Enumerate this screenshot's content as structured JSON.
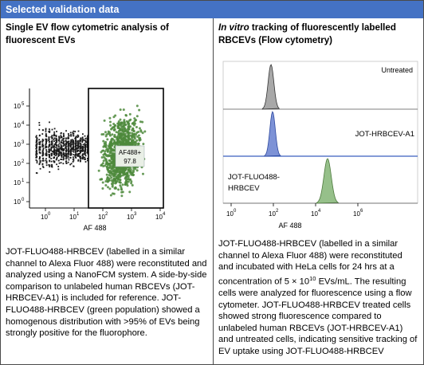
{
  "header": {
    "title": "Selected validation data"
  },
  "left_panel": {
    "title": "Single EV flow cytometric analysis of fluorescent EVs",
    "gate_label": "AF488+",
    "gate_value": "97.8",
    "x_axis_label": "AF 488",
    "y_ticks": [
      "10",
      "10",
      "10",
      "10",
      "10",
      "10"
    ],
    "y_tick_exps": [
      "5",
      "4",
      "3",
      "2",
      "1",
      "0"
    ],
    "x_ticks": [
      "10",
      "10",
      "10",
      "10",
      "10"
    ],
    "x_tick_exps": [
      "0",
      "1",
      "2",
      "3",
      "4"
    ],
    "body": "JOT-FLUO488-HRBCEV (labelled in a similar channel to Alexa Fluor 488) were reconstituted and analyzed using a NanoFCM system. A side-by-side comparison to unlabeled human RBCEVs (JOT-HRBCEV-A1) is included for reference. JOT-FLUO488-HRBCEV (green population) showed a homogenous distribution with >95% of EVs being strongly positive for the fluorophore."
  },
  "right_panel": {
    "title_italic": "In vitro",
    "title_rest": " tracking of fluorescently labelled RBCEVs (Flow cytometry)",
    "label_untreated": "Untreated",
    "label_a1": "JOT-HRBCEV-A1",
    "label_fluo_line1": "JOT-FLUO488-",
    "label_fluo_line2": "HRBCEV",
    "x_axis_label": "AF 488",
    "x_ticks": [
      "10",
      "10",
      "10",
      "10"
    ],
    "x_tick_exps": [
      "0",
      "2",
      "4",
      "6"
    ],
    "body_line_1": "JOT-FLUO488-HRBCEV (labelled in a similar channel to Alexa Fluor 488) were reconstituted and incubated with HeLa cells for 24 hrs at a concentration of 5 × 10",
    "body_exp": "10",
    "body_line_2": " EVs/mL. The resulting cells were analyzed for fluorescence using a flow cytometer. JOT-FLUO488-HRBCEV treated cells showed strong fluorescence compared to unlabeled human RBCEVs (JOT-HRBCEV-A1) and untreated cells, indicating sensitive tracking of EV uptake using JOT-FLUO488-HRBCEV"
  },
  "colors": {
    "header_bg": "#4472c4",
    "green_population": "#4e8a3c",
    "black_population": "#1a1a1a",
    "untreated_fill": "#a8a8a8",
    "a1_fill": "#7d92d6",
    "fluo_fill": "#96c08a"
  }
}
